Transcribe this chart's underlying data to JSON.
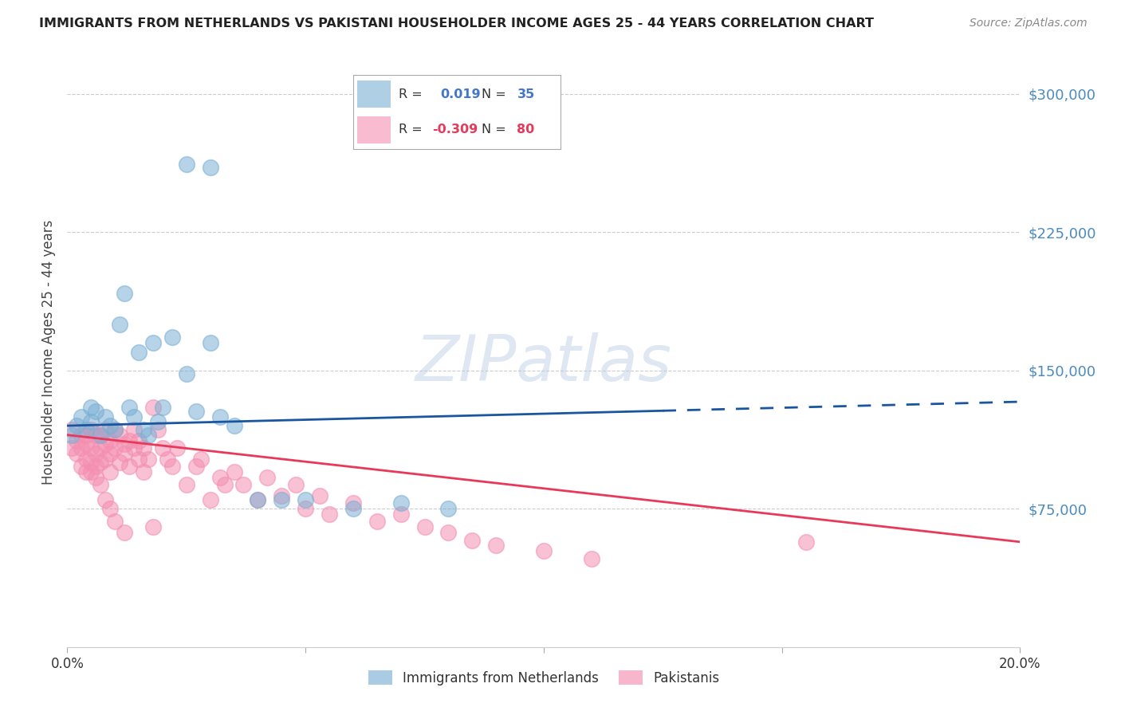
{
  "title": "IMMIGRANTS FROM NETHERLANDS VS PAKISTANI HOUSEHOLDER INCOME AGES 25 - 44 YEARS CORRELATION CHART",
  "source": "Source: ZipAtlas.com",
  "ylabel_label": "Householder Income Ages 25 - 44 years",
  "ytick_values": [
    0,
    75000,
    150000,
    225000,
    300000
  ],
  "ytick_labels": [
    "",
    "$75,000",
    "$150,000",
    "$225,000",
    "$300,000"
  ],
  "xlim": [
    0.0,
    0.2
  ],
  "ylim": [
    0,
    320000
  ],
  "blue_color": "#7BAFD4",
  "pink_color": "#F48FB1",
  "blue_line_color": "#1A56A0",
  "pink_line_color": "#E8395A",
  "background_color": "#FFFFFF",
  "grid_color": "#CCCCCC",
  "watermark_text": "ZIPatlas",
  "watermark_color": "#B8CCE4",
  "blue_scatter_x": [
    0.001,
    0.002,
    0.003,
    0.004,
    0.005,
    0.005,
    0.006,
    0.007,
    0.008,
    0.009,
    0.01,
    0.011,
    0.012,
    0.013,
    0.014,
    0.015,
    0.016,
    0.017,
    0.018,
    0.019,
    0.02,
    0.022,
    0.025,
    0.027,
    0.03,
    0.032,
    0.035,
    0.04,
    0.045,
    0.05,
    0.06,
    0.07,
    0.08,
    0.025,
    0.03
  ],
  "blue_scatter_y": [
    115000,
    120000,
    125000,
    118000,
    130000,
    122000,
    128000,
    115000,
    125000,
    120000,
    118000,
    175000,
    192000,
    130000,
    125000,
    160000,
    118000,
    115000,
    165000,
    122000,
    130000,
    168000,
    148000,
    128000,
    165000,
    125000,
    120000,
    80000,
    80000,
    80000,
    75000,
    78000,
    75000,
    262000,
    260000
  ],
  "pink_scatter_x": [
    0.001,
    0.001,
    0.002,
    0.002,
    0.003,
    0.003,
    0.003,
    0.004,
    0.004,
    0.004,
    0.005,
    0.005,
    0.005,
    0.006,
    0.006,
    0.006,
    0.007,
    0.007,
    0.007,
    0.008,
    0.008,
    0.008,
    0.009,
    0.009,
    0.009,
    0.01,
    0.01,
    0.011,
    0.011,
    0.012,
    0.012,
    0.013,
    0.013,
    0.014,
    0.014,
    0.015,
    0.015,
    0.016,
    0.016,
    0.017,
    0.018,
    0.019,
    0.02,
    0.021,
    0.022,
    0.023,
    0.025,
    0.027,
    0.028,
    0.03,
    0.032,
    0.033,
    0.035,
    0.037,
    0.04,
    0.042,
    0.045,
    0.048,
    0.05,
    0.053,
    0.055,
    0.06,
    0.065,
    0.07,
    0.075,
    0.08,
    0.085,
    0.09,
    0.1,
    0.11,
    0.004,
    0.005,
    0.006,
    0.007,
    0.008,
    0.009,
    0.01,
    0.012,
    0.018,
    0.155
  ],
  "pink_scatter_y": [
    118000,
    108000,
    112000,
    105000,
    115000,
    108000,
    98000,
    115000,
    110000,
    102000,
    118000,
    108000,
    95000,
    115000,
    105000,
    98000,
    115000,
    108000,
    100000,
    118000,
    110000,
    102000,
    112000,
    105000,
    95000,
    118000,
    108000,
    115000,
    100000,
    110000,
    105000,
    112000,
    98000,
    108000,
    118000,
    102000,
    112000,
    108000,
    95000,
    102000,
    130000,
    118000,
    108000,
    102000,
    98000,
    108000,
    88000,
    98000,
    102000,
    80000,
    92000,
    88000,
    95000,
    88000,
    80000,
    92000,
    82000,
    88000,
    75000,
    82000,
    72000,
    78000,
    68000,
    72000,
    65000,
    62000,
    58000,
    55000,
    52000,
    48000,
    95000,
    100000,
    92000,
    88000,
    80000,
    75000,
    68000,
    62000,
    65000,
    57000
  ],
  "blue_line_x0": 0.0,
  "blue_line_x_solid_end": 0.125,
  "blue_line_x1": 0.2,
  "blue_line_y0": 120000,
  "blue_line_y1": 133000,
  "pink_line_x0": 0.0,
  "pink_line_x1": 0.2,
  "pink_line_y0": 115000,
  "pink_line_y1": 57000
}
